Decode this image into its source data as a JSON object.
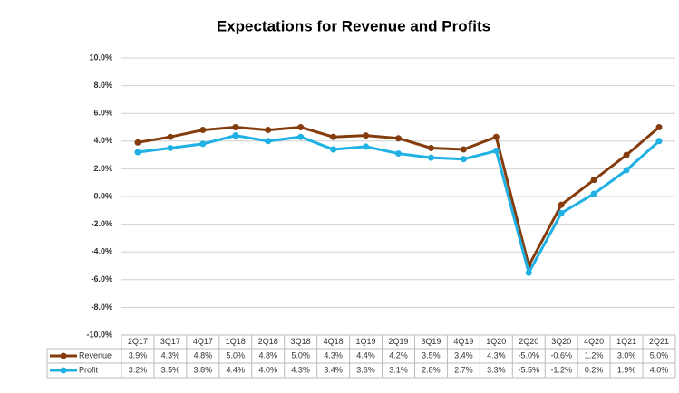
{
  "chart_data": {
    "type": "line",
    "title": "Expectations for Revenue and Profits",
    "categories": [
      "2Q17",
      "3Q17",
      "4Q17",
      "1Q18",
      "2Q18",
      "3Q18",
      "4Q18",
      "1Q19",
      "2Q19",
      "3Q19",
      "4Q19",
      "1Q20",
      "2Q20",
      "3Q20",
      "4Q20",
      "1Q21",
      "2Q21"
    ],
    "series": [
      {
        "name": "Revenue",
        "color": "#843c0c",
        "values": [
          3.9,
          4.3,
          4.8,
          5.0,
          4.8,
          5.0,
          4.3,
          4.4,
          4.2,
          3.5,
          3.4,
          4.3,
          -5.0,
          -0.6,
          1.2,
          3.0,
          5.0
        ],
        "value_labels": [
          "3.9%",
          "4.3%",
          "4.8%",
          "5.0%",
          "4.8%",
          "5.0%",
          "4.3%",
          "4.4%",
          "4.2%",
          "3.5%",
          "3.4%",
          "4.3%",
          "-5.0%",
          "-0.6%",
          "1.2%",
          "3.0%",
          "5.0%"
        ]
      },
      {
        "name": "Profit",
        "color": "#1fb0e4",
        "values": [
          3.2,
          3.5,
          3.8,
          4.4,
          4.0,
          4.3,
          3.4,
          3.6,
          3.1,
          2.8,
          2.7,
          3.3,
          -5.5,
          -1.2,
          0.2,
          1.9,
          4.0
        ],
        "value_labels": [
          "3.2%",
          "3.5%",
          "3.8%",
          "4.4%",
          "4.0%",
          "4.3%",
          "3.4%",
          "3.6%",
          "3.1%",
          "2.8%",
          "2.7%",
          "3.3%",
          "-5.5%",
          "-1.2%",
          "0.2%",
          "1.9%",
          "4.0%"
        ]
      }
    ],
    "ylim": [
      -10,
      10
    ],
    "yticks": [
      {
        "value": -10,
        "label": "-10.0%"
      },
      {
        "value": -8,
        "label": "-8.0%"
      },
      {
        "value": -6,
        "label": "-6.0%"
      },
      {
        "value": -4,
        "label": "-4.0%"
      },
      {
        "value": -2,
        "label": "-2.0%"
      },
      {
        "value": 0,
        "label": "0.0%"
      },
      {
        "value": 2,
        "label": "2.0%"
      },
      {
        "value": 4,
        "label": "4.0%"
      },
      {
        "value": 6,
        "label": "6.0%"
      },
      {
        "value": 8,
        "label": "8.0%"
      },
      {
        "value": 10,
        "label": "10.0%"
      }
    ],
    "grid": true
  }
}
